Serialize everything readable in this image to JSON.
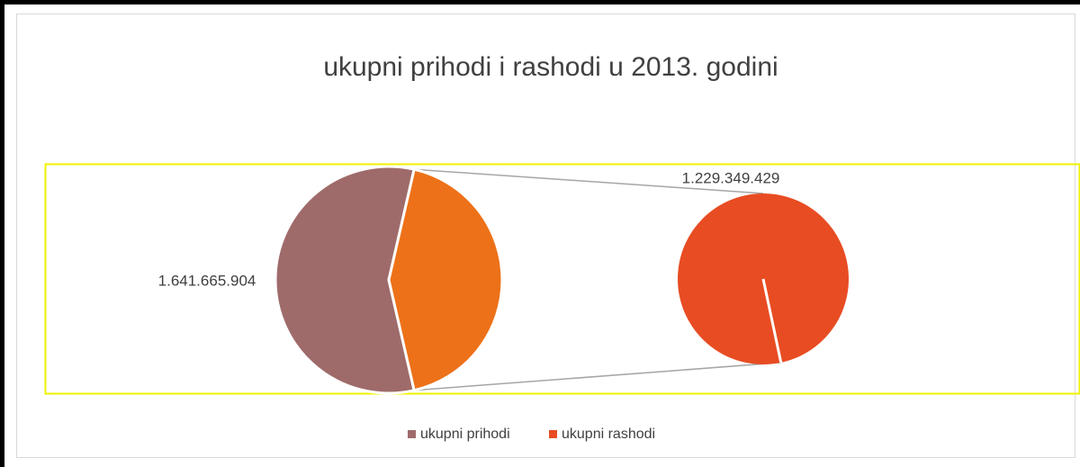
{
  "chart_data": {
    "type": "pie-of-pie",
    "title": "ukupni prihodi i rashodi u 2013. godini",
    "categories": [
      "ukupni prihodi",
      "ukupni rashodi"
    ],
    "values": [
      1641665904,
      1229349429
    ],
    "value_labels": [
      "1.641.665.904",
      "1.229.349.429"
    ],
    "colors": [
      "#9e6b6a",
      "#e84c22"
    ],
    "split_slice_color": "#ed7118",
    "legend": "bottom"
  }
}
